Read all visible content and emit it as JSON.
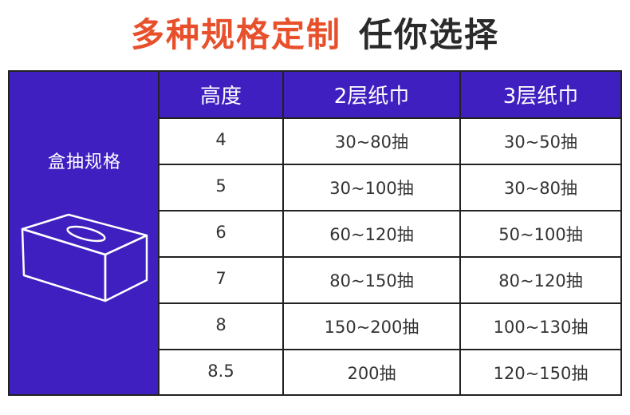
{
  "title": {
    "highlight": "多种规格定制",
    "rest": "任你选择"
  },
  "side": {
    "label": "盒抽规格",
    "icon": "tissue-box-icon"
  },
  "table": {
    "headers": [
      "高度",
      "2层纸巾",
      "3层纸巾"
    ],
    "rows": [
      [
        "4",
        "30~80抽",
        "30~50抽"
      ],
      [
        "5",
        "30~100抽",
        "30~80抽"
      ],
      [
        "6",
        "60~120抽",
        "50~100抽"
      ],
      [
        "7",
        "80~150抽",
        "80~120抽"
      ],
      [
        "8",
        "150~200抽",
        "100~130抽"
      ],
      [
        "8.5",
        "200抽",
        "120~150抽"
      ]
    ]
  },
  "colors": {
    "accent": "#3f1fc0",
    "title_highlight": "#e8502c",
    "title_dark": "#2a2a2a"
  }
}
